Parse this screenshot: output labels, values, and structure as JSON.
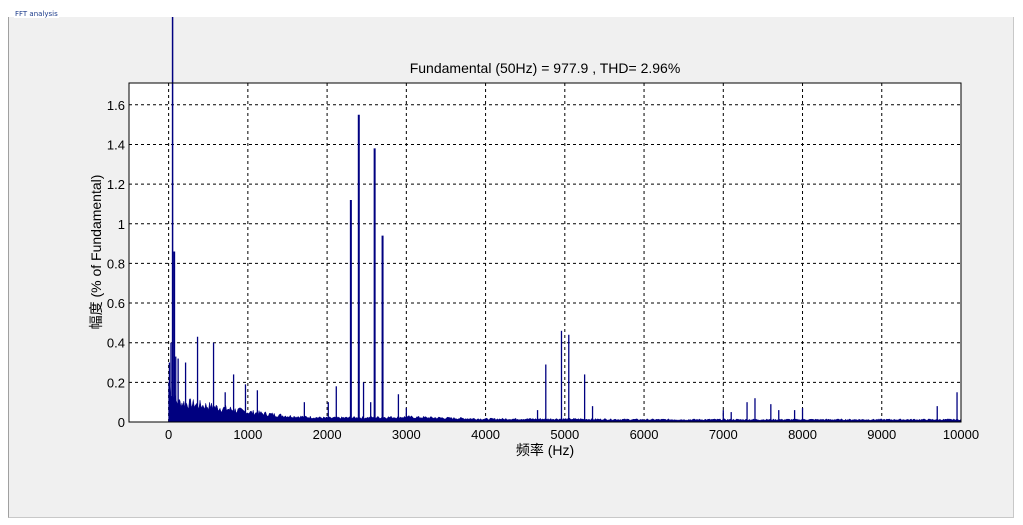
{
  "panel": {
    "title": "FFT analysis"
  },
  "chart_data": {
    "type": "bar",
    "title": "Fundamental (50Hz) = 977.9 , THD= 2.96%",
    "xlabel": "频率 (Hz)",
    "ylabel": "幅度 (% of Fundamental)",
    "xlim": [
      -500,
      10000
    ],
    "ylim": [
      0,
      1.71
    ],
    "grid": true,
    "bar_color": "#000080",
    "xticks": [
      0,
      1000,
      2000,
      3000,
      4000,
      5000,
      6000,
      7000,
      8000,
      9000,
      10000
    ],
    "xtick_labels": [
      "0",
      "1000",
      "2000",
      "3000",
      "4000",
      "5000",
      "6000",
      "7000",
      "8000",
      "9000",
      "10000"
    ],
    "yticks": [
      0,
      0.2,
      0.4,
      0.6,
      0.8,
      1,
      1.2,
      1.4,
      1.6
    ],
    "ytick_labels": [
      "0",
      "0.2",
      "0.4",
      "0.6",
      "0.8",
      "1",
      "1.2",
      "1.4",
      "1.6"
    ],
    "fundamental": {
      "frequency": 50,
      "value": 100
    },
    "peaks": [
      {
        "f": 10,
        "v": 0.3
      },
      {
        "f": 30,
        "v": 0.4
      },
      {
        "f": 70,
        "v": 0.86
      },
      {
        "f": 90,
        "v": 0.33
      },
      {
        "f": 120,
        "v": 0.32
      },
      {
        "f": 214,
        "v": 0.3
      },
      {
        "f": 365,
        "v": 0.43
      },
      {
        "f": 567,
        "v": 0.4
      },
      {
        "f": 714,
        "v": 0.15
      },
      {
        "f": 820,
        "v": 0.24
      },
      {
        "f": 970,
        "v": 0.19
      },
      {
        "f": 1120,
        "v": 0.16
      },
      {
        "f": 1713,
        "v": 0.1
      },
      {
        "f": 2015,
        "v": 0.1
      },
      {
        "f": 2116,
        "v": 0.18
      },
      {
        "f": 2300,
        "v": 1.12
      },
      {
        "f": 2400,
        "v": 1.55
      },
      {
        "f": 2460,
        "v": 0.2
      },
      {
        "f": 2550,
        "v": 0.1
      },
      {
        "f": 2600,
        "v": 1.38
      },
      {
        "f": 2700,
        "v": 0.94
      },
      {
        "f": 2900,
        "v": 0.14
      },
      {
        "f": 3000,
        "v": 0.07
      },
      {
        "f": 4656,
        "v": 0.06
      },
      {
        "f": 4760,
        "v": 0.29
      },
      {
        "f": 4958,
        "v": 0.46
      },
      {
        "f": 5050,
        "v": 0.44
      },
      {
        "f": 5250,
        "v": 0.24
      },
      {
        "f": 5350,
        "v": 0.08
      },
      {
        "f": 7000,
        "v": 0.06
      },
      {
        "f": 7100,
        "v": 0.05
      },
      {
        "f": 7300,
        "v": 0.1
      },
      {
        "f": 7400,
        "v": 0.12
      },
      {
        "f": 7600,
        "v": 0.09
      },
      {
        "f": 7700,
        "v": 0.06
      },
      {
        "f": 7900,
        "v": 0.06
      },
      {
        "f": 8000,
        "v": 0.07
      },
      {
        "f": 9700,
        "v": 0.08
      },
      {
        "f": 9950,
        "v": 0.15
      }
    ],
    "noise_floor": [
      [
        0,
        0.2
      ],
      [
        60,
        0.12
      ],
      [
        100,
        0.1
      ],
      [
        500,
        0.08
      ],
      [
        1000,
        0.05
      ],
      [
        1500,
        0.03
      ],
      [
        2000,
        0.02
      ],
      [
        3000,
        0.025
      ],
      [
        4000,
        0.015
      ],
      [
        5000,
        0.015
      ],
      [
        6000,
        0.012
      ],
      [
        8000,
        0.012
      ],
      [
        10000,
        0.012
      ]
    ]
  }
}
